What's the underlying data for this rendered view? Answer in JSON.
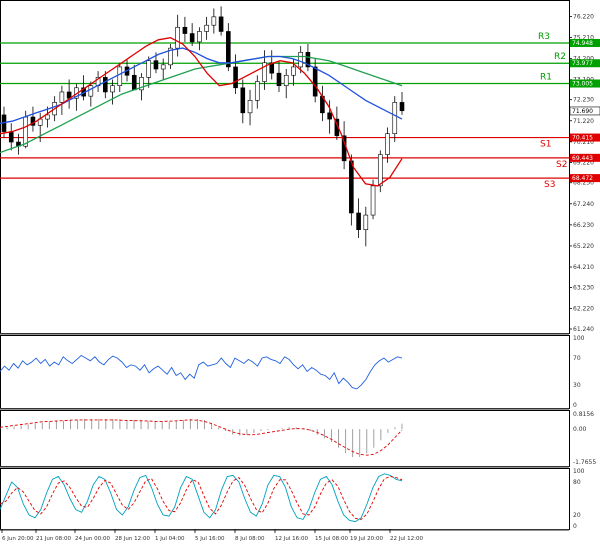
{
  "chart_data": {
    "type": "candlestick",
    "price_panel": {
      "y_ticks": [
        "76.220",
        "75.210",
        "74.200",
        "73.190",
        "72.230",
        "71.220",
        "70.210",
        "69.220",
        "68.250",
        "67.240",
        "66.230",
        "65.220",
        "64.210",
        "63.230",
        "62.220",
        "61.240"
      ],
      "ylim": [
        61.24,
        76.72
      ],
      "candles": [
        [
          71.5,
          71.9,
          70.4,
          70.7
        ],
        [
          70.7,
          71.1,
          69.8,
          70.2
        ],
        [
          70.2,
          70.6,
          69.6,
          70.0
        ],
        [
          70.0,
          71.7,
          69.9,
          71.4
        ],
        [
          71.4,
          71.9,
          70.7,
          71.0
        ],
        [
          71.0,
          71.6,
          70.2,
          71.3
        ],
        [
          71.3,
          71.9,
          70.9,
          71.5
        ],
        [
          71.5,
          72.4,
          71.2,
          72.1
        ],
        [
          72.1,
          72.9,
          71.5,
          72.6
        ],
        [
          72.6,
          73.2,
          71.8,
          72.3
        ],
        [
          72.3,
          73.0,
          71.7,
          72.8
        ],
        [
          72.8,
          73.4,
          72.2,
          72.4
        ],
        [
          72.4,
          73.1,
          71.9,
          72.9
        ],
        [
          72.9,
          73.6,
          72.6,
          73.3
        ],
        [
          73.3,
          73.6,
          72.3,
          72.6
        ],
        [
          72.6,
          73.2,
          72.0,
          72.9
        ],
        [
          72.9,
          74.0,
          72.6,
          73.8
        ],
        [
          73.8,
          74.2,
          73.1,
          73.4
        ],
        [
          73.4,
          73.9,
          72.8,
          72.7
        ],
        [
          72.7,
          73.5,
          72.2,
          73.3
        ],
        [
          73.3,
          74.3,
          72.8,
          74.1
        ],
        [
          74.1,
          74.5,
          73.5,
          73.7
        ],
        [
          73.7,
          74.2,
          73.2,
          73.9
        ],
        [
          73.9,
          74.9,
          73.7,
          74.7
        ],
        [
          74.7,
          76.3,
          74.3,
          75.7
        ],
        [
          75.7,
          76.2,
          75.0,
          75.4
        ],
        [
          75.4,
          75.9,
          74.8,
          75.0
        ],
        [
          75.0,
          75.7,
          74.6,
          75.5
        ],
        [
          75.5,
          76.2,
          75.1,
          75.8
        ],
        [
          75.8,
          76.6,
          75.4,
          76.2
        ],
        [
          76.2,
          76.7,
          75.3,
          75.5
        ],
        [
          75.5,
          75.9,
          73.6,
          73.8
        ],
        [
          73.8,
          74.4,
          72.5,
          72.8
        ],
        [
          72.8,
          73.2,
          71.1,
          71.6
        ],
        [
          71.6,
          72.7,
          71.0,
          72.2
        ],
        [
          72.2,
          73.4,
          71.8,
          73.1
        ],
        [
          73.1,
          74.6,
          72.7,
          74.0
        ],
        [
          74.0,
          74.6,
          73.2,
          73.5
        ],
        [
          73.5,
          74.1,
          72.6,
          72.9
        ],
        [
          72.9,
          73.7,
          72.3,
          73.4
        ],
        [
          73.4,
          74.2,
          72.9,
          73.8
        ],
        [
          73.8,
          74.8,
          73.5,
          74.5
        ],
        [
          74.5,
          74.9,
          73.6,
          73.8
        ],
        [
          73.8,
          74.2,
          72.1,
          72.4
        ],
        [
          72.4,
          72.9,
          71.2,
          71.6
        ],
        [
          71.6,
          72.2,
          70.6,
          71.3
        ],
        [
          71.3,
          71.9,
          70.3,
          70.5
        ],
        [
          70.5,
          71.2,
          68.9,
          69.3
        ],
        [
          69.3,
          69.6,
          66.2,
          66.8
        ],
        [
          66.8,
          67.5,
          65.6,
          66.0
        ],
        [
          66.0,
          67.1,
          65.2,
          66.7
        ],
        [
          66.7,
          68.4,
          66.5,
          68.1
        ],
        [
          68.1,
          69.8,
          67.8,
          69.6
        ],
        [
          69.6,
          70.9,
          69.2,
          70.6
        ],
        [
          70.6,
          72.4,
          70.2,
          72.1
        ],
        [
          72.1,
          72.6,
          71.5,
          71.7
        ]
      ],
      "levels": [
        {
          "name": "R3",
          "value": 74.948,
          "color": "#00a000",
          "label_box": "74.948"
        },
        {
          "name": "R2",
          "value": 73.977,
          "color": "#00a000",
          "label_box": "73.977"
        },
        {
          "name": "R1",
          "value": 73.005,
          "color": "#00a000",
          "label_box": "73.005"
        },
        {
          "name": "S1",
          "value": 70.415,
          "color": "#e00000",
          "label_box": "70.415"
        },
        {
          "name": "S2",
          "value": 69.443,
          "color": "#e00000",
          "label_box": "69.443"
        },
        {
          "name": "S3",
          "value": 68.472,
          "color": "#e00000",
          "label_box": "68.472"
        }
      ],
      "current_price": "71.690",
      "ma_red": [
        70.6,
        70.7,
        70.9,
        71.2,
        71.6,
        72.0,
        72.4,
        72.8,
        73.2,
        73.6,
        74.0,
        74.4,
        74.8,
        75.1,
        75.2,
        74.9,
        74.3,
        73.5,
        72.9,
        73.0,
        73.3,
        73.6,
        73.9,
        74.1,
        74.0,
        73.5,
        72.8,
        71.9,
        70.6,
        69.0,
        68.2,
        68.1,
        68.5,
        69.4
      ],
      "ma_blue": [
        71.1,
        71.2,
        71.4,
        71.6,
        71.8,
        72.0,
        72.3,
        72.6,
        72.9,
        73.2,
        73.5,
        73.8,
        74.1,
        74.4,
        74.6,
        74.7,
        74.5,
        74.2,
        74.0,
        74.0,
        74.1,
        74.2,
        74.3,
        74.3,
        74.2,
        74.0,
        73.7,
        73.4,
        73.0,
        72.6,
        72.2,
        71.9,
        71.6,
        71.3
      ],
      "ma_green": [
        69.7,
        69.9,
        70.1,
        70.4,
        70.7,
        71.0,
        71.3,
        71.6,
        71.9,
        72.2,
        72.5,
        72.7,
        72.9,
        73.1,
        73.3,
        73.5,
        73.7,
        73.8,
        73.9,
        74.0,
        74.1,
        74.2,
        74.3,
        74.3,
        74.3,
        74.3,
        74.2,
        74.1,
        73.9,
        73.7,
        73.5,
        73.3,
        73.1,
        72.9
      ],
      "colors": {
        "bull": "#000000",
        "bear": "#000000",
        "ma_red": "#e00000",
        "ma_blue": "#2050e0",
        "ma_green": "#20a050"
      }
    },
    "rsi_panel": {
      "y_ticks": [
        "100",
        "70",
        "30",
        "0"
      ],
      "ylim": [
        0,
        100
      ],
      "values": [
        50,
        58,
        52,
        62,
        55,
        66,
        60,
        64,
        70,
        62,
        68,
        58,
        64,
        60,
        72,
        66,
        62,
        68,
        74,
        70,
        66,
        72,
        64,
        60,
        68,
        73,
        70,
        64,
        56,
        60,
        58,
        52,
        60,
        48,
        54,
        58,
        52,
        46,
        56,
        44,
        48,
        38,
        46,
        40,
        60,
        64,
        58,
        60,
        62,
        70,
        62,
        56,
        70,
        66,
        62,
        68,
        64,
        58,
        70,
        72,
        68,
        66,
        62,
        72,
        68,
        60,
        54,
        60,
        50,
        56,
        52,
        46,
        44,
        38,
        48,
        32,
        40,
        34,
        26,
        24,
        30,
        38,
        50,
        60,
        66,
        70,
        64,
        68,
        72,
        70
      ]
    },
    "macd_panel": {
      "y_ticks": [
        "0.8156",
        "0.00",
        "-1.7655"
      ],
      "ylim": [
        -1.7655,
        0.8156
      ],
      "hist": [
        0.05,
        0.1,
        0.15,
        0.2,
        0.25,
        0.3,
        0.35,
        0.4,
        0.45,
        0.45,
        0.5,
        0.5,
        0.55,
        0.55,
        0.55,
        0.55,
        0.55,
        0.55,
        0.5,
        0.5,
        0.5,
        0.45,
        0.45,
        0.4,
        0.4,
        0.45,
        0.5,
        0.55,
        0.55,
        0.5,
        0.3,
        0.1,
        -0.1,
        -0.3,
        -0.35,
        -0.3,
        -0.2,
        -0.1,
        -0.05,
        0.0,
        0.05,
        0.1,
        0.1,
        0.05,
        -0.1,
        -0.3,
        -0.5,
        -0.7,
        -1.0,
        -1.3,
        -1.5,
        -1.5,
        -1.3,
        -1.0,
        -0.6,
        -0.2,
        0.1,
        0.3
      ],
      "signal": [
        0.1,
        0.15,
        0.2,
        0.25,
        0.3,
        0.35,
        0.4,
        0.42,
        0.44,
        0.46,
        0.48,
        0.5,
        0.5,
        0.5,
        0.5,
        0.5,
        0.5,
        0.48,
        0.47,
        0.46,
        0.45,
        0.44,
        0.42,
        0.42,
        0.43,
        0.45,
        0.48,
        0.5,
        0.48,
        0.42,
        0.3,
        0.15,
        0.0,
        -0.15,
        -0.25,
        -0.3,
        -0.3,
        -0.25,
        -0.18,
        -0.12,
        -0.06,
        0.0,
        0.03,
        0.02,
        -0.05,
        -0.18,
        -0.35,
        -0.55,
        -0.78,
        -1.0,
        -1.2,
        -1.35,
        -1.4,
        -1.35,
        -1.15,
        -0.85,
        -0.45,
        -0.05
      ],
      "colors": {
        "hist": "#a0a0a0",
        "signal": "#e00000"
      }
    },
    "stoch_panel": {
      "y_ticks": [
        "100",
        "80",
        "20",
        "0"
      ],
      "ylim": [
        0,
        100
      ],
      "k": [
        30,
        55,
        80,
        70,
        40,
        20,
        15,
        30,
        60,
        85,
        90,
        75,
        50,
        30,
        25,
        45,
        75,
        90,
        85,
        60,
        30,
        20,
        35,
        65,
        88,
        92,
        70,
        40,
        20,
        18,
        35,
        70,
        90,
        85,
        55,
        25,
        15,
        30,
        65,
        90,
        92,
        80,
        50,
        25,
        18,
        40,
        75,
        92,
        90,
        70,
        35,
        15,
        12,
        30,
        60,
        85,
        90,
        75,
        45,
        20,
        10,
        8,
        15,
        40,
        70,
        90,
        95,
        92,
        85,
        82
      ],
      "d": [
        40,
        45,
        60,
        70,
        62,
        45,
        28,
        22,
        35,
        58,
        78,
        82,
        70,
        52,
        36,
        34,
        50,
        70,
        83,
        78,
        58,
        38,
        30,
        42,
        62,
        82,
        86,
        68,
        45,
        28,
        26,
        42,
        66,
        84,
        80,
        55,
        32,
        22,
        38,
        62,
        82,
        88,
        74,
        50,
        30,
        24,
        42,
        68,
        84,
        84,
        65,
        42,
        22,
        20,
        34,
        58,
        78,
        84,
        72,
        48,
        26,
        14,
        12,
        22,
        44,
        68,
        86,
        90,
        88,
        84
      ],
      "colors": {
        "k": "#00a0c0",
        "d": "#e00000"
      }
    },
    "x_labels": [
      "6 Jun 20:00",
      "21 Jun 08:00",
      "24 Jun 00:00",
      "28 Jun 12:00",
      "1 Jul 04:00",
      "5 Jul 16:00",
      "8 Jul 08:00",
      "12 Jul 16:00",
      "15 Jul 08:00",
      "19 Jul 20:00",
      "22 Jul 12:00"
    ]
  }
}
